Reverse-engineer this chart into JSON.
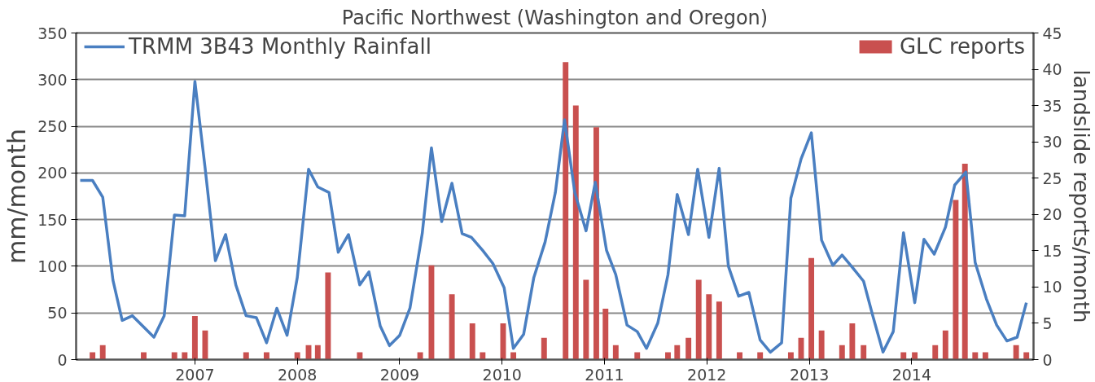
{
  "chart_data": {
    "type": "line",
    "title": "Pacific Northwest (Washington and Oregon)",
    "ylabel": "mm/month",
    "y2label": "landslide reports/month",
    "xlim": [
      2005.84,
      2015.19
    ],
    "xticks": [
      2007,
      2008,
      2009,
      2010,
      2011,
      2012,
      2013,
      2014
    ],
    "ylim": [
      0,
      350
    ],
    "yticks": [
      0,
      50,
      100,
      150,
      200,
      250,
      300,
      350
    ],
    "y2lim": [
      0,
      45
    ],
    "y2ticks": [
      0,
      5,
      10,
      15,
      20,
      25,
      30,
      35,
      40,
      45
    ],
    "grid": "y",
    "legend": "top",
    "marker": "none",
    "line_style": "solid",
    "series": [
      {
        "name": "TRMM 3B43 Monthly Rainfall",
        "color": "#4a7fc1",
        "x": [
          2005.88,
          2006.0,
          2006.1,
          2006.2,
          2006.29,
          2006.39,
          2006.49,
          2006.6,
          2006.7,
          2006.8,
          2006.9,
          2007.0,
          2007.1,
          2007.2,
          2007.3,
          2007.4,
          2007.5,
          2007.6,
          2007.7,
          2007.8,
          2007.9,
          2008.0,
          2008.11,
          2008.2,
          2008.31,
          2008.4,
          2008.5,
          2008.61,
          2008.7,
          2008.81,
          2008.9,
          2009.0,
          2009.1,
          2009.22,
          2009.31,
          2009.41,
          2009.51,
          2009.61,
          2009.7,
          2009.81,
          2009.91,
          2010.02,
          2010.11,
          2010.21,
          2010.31,
          2010.42,
          2010.52,
          2010.61,
          2010.71,
          2010.82,
          2010.91,
          2011.02,
          2011.11,
          2011.22,
          2011.32,
          2011.41,
          2011.52,
          2011.62,
          2011.71,
          2011.82,
          2011.91,
          2012.02,
          2012.12,
          2012.21,
          2012.31,
          2012.41,
          2012.52,
          2012.62,
          2012.73,
          2012.82,
          2012.92,
          2013.02,
          2013.12,
          2013.23,
          2013.32,
          2013.42,
          2013.53,
          2013.62,
          2013.72,
          2013.82,
          2013.92,
          2014.03,
          2014.12,
          2014.22,
          2014.33,
          2014.42,
          2014.53,
          2014.62,
          2014.73,
          2014.83,
          2014.93,
          2015.03,
          2015.12
        ],
        "values": [
          192,
          192,
          174,
          85,
          42,
          47,
          36,
          24,
          47,
          155,
          154,
          298,
          205,
          106,
          134,
          80,
          47,
          45,
          18,
          55,
          26,
          88,
          204,
          185,
          179,
          115,
          134,
          80,
          94,
          36,
          15,
          26,
          55,
          135,
          227,
          148,
          189,
          135,
          131,
          117,
          103,
          77,
          12,
          27,
          88,
          126,
          179,
          257,
          179,
          138,
          190,
          117,
          91,
          37,
          30,
          12,
          39,
          91,
          177,
          134,
          204,
          131,
          205,
          100,
          68,
          72,
          21,
          8,
          18,
          173,
          215,
          243,
          128,
          101,
          112,
          99,
          84,
          47,
          8,
          30,
          136,
          61,
          129,
          113,
          142,
          187,
          201,
          104,
          65,
          37,
          20,
          24,
          61
        ]
      },
      {
        "name": "GLC reports",
        "type": "bar",
        "axis": "y2",
        "color": "#c9504f",
        "x": [
          2006.0,
          2006.1,
          2006.5,
          2006.8,
          2006.9,
          2007.0,
          2007.1,
          2007.5,
          2007.7,
          2008.0,
          2008.11,
          2008.2,
          2008.3,
          2008.61,
          2009.2,
          2009.31,
          2009.51,
          2009.71,
          2009.81,
          2010.01,
          2010.11,
          2010.41,
          2010.62,
          2010.72,
          2010.82,
          2010.92,
          2011.01,
          2011.11,
          2011.32,
          2011.62,
          2011.71,
          2011.82,
          2011.92,
          2012.02,
          2012.12,
          2012.32,
          2012.52,
          2012.82,
          2012.92,
          2013.02,
          2013.12,
          2013.32,
          2013.42,
          2013.53,
          2013.92,
          2014.03,
          2014.23,
          2014.33,
          2014.43,
          2014.52,
          2014.62,
          2014.72,
          2015.02,
          2015.12
        ],
        "values": [
          1,
          2,
          1,
          1,
          1,
          6,
          4,
          1,
          1,
          1,
          2,
          2,
          12,
          1,
          1,
          13,
          9,
          5,
          1,
          5,
          1,
          3,
          41,
          35,
          11,
          32,
          7,
          2,
          1,
          1,
          2,
          3,
          11,
          9,
          8,
          1,
          1,
          1,
          3,
          14,
          4,
          2,
          5,
          2,
          1,
          1,
          2,
          4,
          22,
          27,
          1,
          1,
          2,
          1
        ]
      }
    ]
  }
}
